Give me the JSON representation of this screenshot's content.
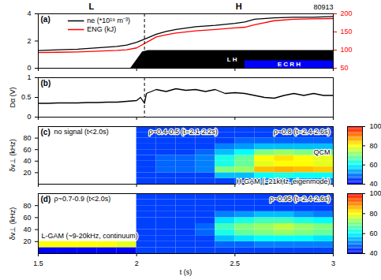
{
  "chart_data": [
    {
      "type": "line",
      "panel_label": "(a)",
      "xlim": [
        1.5,
        3
      ],
      "xticks": [
        1.5,
        2,
        2.5,
        3
      ],
      "ylim": [
        0,
        4
      ],
      "yticks": [
        0,
        2,
        4
      ],
      "y2lim": [
        50,
        200
      ],
      "y2ticks": [
        50,
        100,
        150,
        200
      ],
      "tick_labels": "y",
      "legend": "upper left",
      "transition_time": 2.04,
      "texts": {
        "left_phase": "L",
        "right_phase": "H",
        "shot": "80913"
      },
      "series": [
        {
          "name": "ne (*10¹⁹ m⁻³)",
          "color": "#000000",
          "x": [
            1.5,
            1.6,
            1.7,
            1.8,
            1.9,
            1.95,
            2.0,
            2.05,
            2.1,
            2.15,
            2.2,
            2.3,
            2.4,
            2.5,
            2.55,
            2.6,
            2.7,
            2.8,
            2.9,
            3.0
          ],
          "values": [
            1.3,
            1.35,
            1.4,
            1.5,
            1.6,
            1.7,
            1.9,
            2.2,
            2.5,
            2.7,
            2.85,
            3.05,
            3.15,
            3.3,
            3.4,
            3.6,
            3.7,
            3.75,
            3.75,
            3.8
          ]
        },
        {
          "name": "ENG (kJ)",
          "color": "#ff0000",
          "axis": "y2",
          "x": [
            1.5,
            1.6,
            1.7,
            1.8,
            1.9,
            1.95,
            2.0,
            2.05,
            2.1,
            2.15,
            2.2,
            2.3,
            2.4,
            2.5,
            2.55,
            2.6,
            2.7,
            2.8,
            2.9,
            3.0
          ],
          "values": [
            93,
            94,
            95,
            97,
            99,
            101,
            106,
            121,
            136,
            142,
            147,
            153,
            157,
            161,
            163,
            170,
            181,
            185,
            186,
            187
          ]
        },
        {
          "name": "L H",
          "type": "area",
          "color": "#000000",
          "x": [
            1.97,
            2.0,
            2.03,
            2.06,
            3.0
          ],
          "values": [
            0,
            0.6,
            1.2,
            1.3,
            1.3
          ]
        },
        {
          "name": "E C R H",
          "type": "area",
          "color": "#0000ff",
          "x": [
            2.55,
            3.0
          ],
          "values": [
            0.55,
            0.55
          ]
        }
      ]
    },
    {
      "type": "line",
      "panel_label": "(b)",
      "ylabel": "Dα (V)",
      "xlim": [
        1.5,
        3
      ],
      "xticks": [
        1.5,
        2,
        2.5,
        3
      ],
      "ylim": [
        0,
        1
      ],
      "yticks": [
        0,
        0.5,
        1
      ],
      "tick_labels": "y",
      "transition_time": 2.04,
      "series": [
        {
          "color": "#000000",
          "x": [
            1.5,
            1.55,
            1.6,
            1.65,
            1.7,
            1.75,
            1.8,
            1.85,
            1.9,
            1.95,
            2.0,
            2.02,
            2.04,
            2.05,
            2.1,
            2.15,
            2.2,
            2.25,
            2.3,
            2.35,
            2.4,
            2.45,
            2.5,
            2.55,
            2.6,
            2.65,
            2.7,
            2.75,
            2.8,
            2.85,
            2.9,
            2.95,
            3.0
          ],
          "values": [
            0.35,
            0.35,
            0.36,
            0.36,
            0.36,
            0.37,
            0.37,
            0.38,
            0.38,
            0.4,
            0.42,
            0.5,
            0.35,
            0.6,
            0.7,
            0.65,
            0.72,
            0.68,
            0.7,
            0.65,
            0.7,
            0.6,
            0.62,
            0.6,
            0.55,
            0.5,
            0.48,
            0.55,
            0.6,
            0.55,
            0.6,
            0.55,
            0.55
          ]
        }
      ]
    },
    {
      "type": "heatmap",
      "panel_label": "(c)",
      "ylabel": "δv⊥ (kHz)",
      "xlim": [
        1.5,
        3
      ],
      "xticks": [
        1.5,
        2,
        2.5,
        3
      ],
      "ylim": [
        0,
        100
      ],
      "yticks": [
        20,
        40,
        60,
        80
      ],
      "tick_labels": "y",
      "x": [
        1.55,
        1.65,
        1.75,
        1.85,
        1.95,
        2.05,
        2.15,
        2.25,
        2.35,
        2.45,
        2.55,
        2.65,
        2.75,
        2.85,
        2.95
      ],
      "y": [
        5,
        15,
        25,
        35,
        45,
        55,
        65,
        75,
        85,
        95
      ],
      "z": [
        [
          35,
          35,
          35,
          35,
          35,
          45,
          45,
          45,
          45,
          45,
          45,
          50,
          50,
          50,
          50
        ],
        [
          35,
          35,
          35,
          35,
          35,
          45,
          45,
          45,
          45,
          55,
          55,
          60,
          62,
          60,
          60
        ],
        [
          35,
          35,
          35,
          35,
          35,
          45,
          48,
          48,
          50,
          70,
          72,
          85,
          86,
          85,
          84
        ],
        [
          35,
          35,
          35,
          35,
          35,
          45,
          48,
          48,
          50,
          62,
          68,
          78,
          80,
          80,
          78
        ],
        [
          35,
          35,
          35,
          35,
          35,
          45,
          48,
          48,
          50,
          62,
          68,
          80,
          82,
          80,
          78
        ],
        [
          35,
          35,
          35,
          35,
          35,
          45,
          45,
          45,
          48,
          55,
          60,
          70,
          72,
          70,
          68
        ],
        [
          35,
          35,
          35,
          35,
          35,
          45,
          45,
          45,
          45,
          50,
          52,
          55,
          55,
          55,
          55
        ],
        [
          35,
          35,
          35,
          35,
          35,
          45,
          45,
          45,
          45,
          45,
          48,
          48,
          48,
          48,
          48
        ],
        [
          35,
          35,
          35,
          35,
          35,
          45,
          45,
          45,
          45,
          45,
          45,
          45,
          45,
          45,
          45
        ],
        [
          35,
          35,
          35,
          35,
          35,
          45,
          45,
          45,
          45,
          45,
          45,
          45,
          45,
          45,
          45
        ]
      ],
      "colorbar": {
        "range": [
          40,
          100
        ],
        "ticks": [
          40,
          60,
          80,
          100
        ],
        "colors": [
          "#0000ff",
          "#00ffff",
          "#ffff00",
          "#ff0000"
        ]
      },
      "annotations": [
        "no signal (t<2.0s)",
        "ρ~0.4-0.5 (t=2.1-2.2s)",
        "ρ~0.8 (t=2.4-2.6s)",
        "QCM",
        "H-GAM (~21kHz, eigenmode)"
      ]
    },
    {
      "type": "heatmap",
      "panel_label": "(d)",
      "ylabel": "δv⊥ (kHz)",
      "xlabel": "t (s)",
      "xlim": [
        1.5,
        3
      ],
      "xticks": [
        1.5,
        2,
        2.5,
        3
      ],
      "ylim": [
        0,
        100
      ],
      "yticks": [
        20,
        40,
        60,
        80
      ],
      "x": [
        1.55,
        1.65,
        1.75,
        1.85,
        1.95,
        2.05,
        2.15,
        2.25,
        2.35,
        2.45,
        2.55,
        2.65,
        2.75,
        2.85,
        2.95
      ],
      "y": [
        5,
        15,
        25,
        35,
        45,
        55,
        65,
        75,
        85,
        95
      ],
      "z": [
        [
          40,
          40,
          40,
          40,
          40,
          45,
          45,
          45,
          45,
          45,
          45,
          45,
          45,
          45,
          45
        ],
        [
          80,
          80,
          80,
          80,
          78,
          45,
          45,
          45,
          45,
          48,
          48,
          50,
          50,
          50,
          50
        ],
        [
          38,
          38,
          38,
          38,
          38,
          45,
          45,
          45,
          45,
          55,
          58,
          60,
          60,
          60,
          58
        ],
        [
          38,
          38,
          38,
          38,
          38,
          45,
          45,
          45,
          48,
          62,
          68,
          70,
          72,
          70,
          68
        ],
        [
          38,
          38,
          38,
          38,
          38,
          45,
          45,
          45,
          48,
          65,
          70,
          72,
          75,
          72,
          70
        ],
        [
          38,
          38,
          38,
          38,
          38,
          45,
          45,
          45,
          45,
          58,
          62,
          65,
          65,
          62,
          60
        ],
        [
          38,
          38,
          38,
          38,
          38,
          45,
          45,
          45,
          45,
          50,
          52,
          55,
          55,
          52,
          50
        ],
        [
          38,
          38,
          38,
          38,
          38,
          45,
          45,
          45,
          45,
          45,
          45,
          45,
          45,
          45,
          45
        ],
        [
          38,
          38,
          38,
          38,
          38,
          45,
          45,
          45,
          45,
          45,
          45,
          45,
          45,
          45,
          45
        ],
        [
          38,
          38,
          38,
          38,
          38,
          45,
          45,
          45,
          45,
          45,
          45,
          45,
          45,
          45,
          45
        ]
      ],
      "colorbar": {
        "range": [
          40,
          100
        ],
        "ticks": [
          40,
          60,
          80,
          100
        ],
        "colors": [
          "#0000ff",
          "#00ffff",
          "#ffff00",
          "#ff0000"
        ]
      },
      "annotations": [
        "ρ~0.7-0.9 (t<2.0s)",
        "L-GAM (~9-20kHz, continuum)",
        "ρ~0.95 (t=2.4-2.6s)"
      ]
    }
  ]
}
